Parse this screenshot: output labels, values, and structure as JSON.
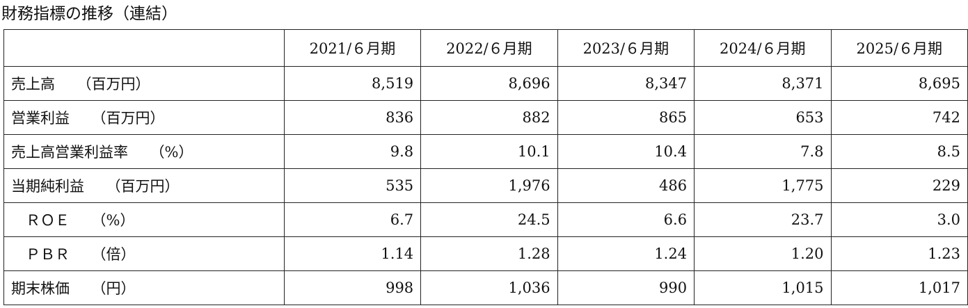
{
  "header": {
    "title": "財務指標の推移（連結）"
  },
  "table": {
    "columns": [
      "",
      "2021/６月期",
      "2022/６月期",
      "2023/６月期",
      "2024/６月期",
      "2025/６月期"
    ],
    "rows": [
      [
        "売上高　　（百万円）",
        "8,519",
        "8,696",
        "8,347",
        "8,371",
        "8,695"
      ],
      [
        "営業利益　　（百万円）",
        "836",
        "882",
        "865",
        "653",
        "742"
      ],
      [
        "売上高営業利益率　　（%）",
        "9.8",
        "10.1",
        "10.4",
        "7.8",
        "8.5"
      ],
      [
        "当期純利益　　（百万円）",
        "535",
        "1,976",
        "486",
        "1,775",
        "229"
      ],
      [
        "　ＲＯＥ　　（%）",
        "6.7",
        "24.5",
        "6.6",
        "23.7",
        "3.0"
      ],
      [
        "　ＰＢＲ　　（倍）",
        "1.14",
        "1.28",
        "1.24",
        "1.20",
        "1.23"
      ],
      [
        "期末株価　　（円）",
        "998",
        "1,036",
        "990",
        "1,015",
        "1,017"
      ]
    ]
  }
}
